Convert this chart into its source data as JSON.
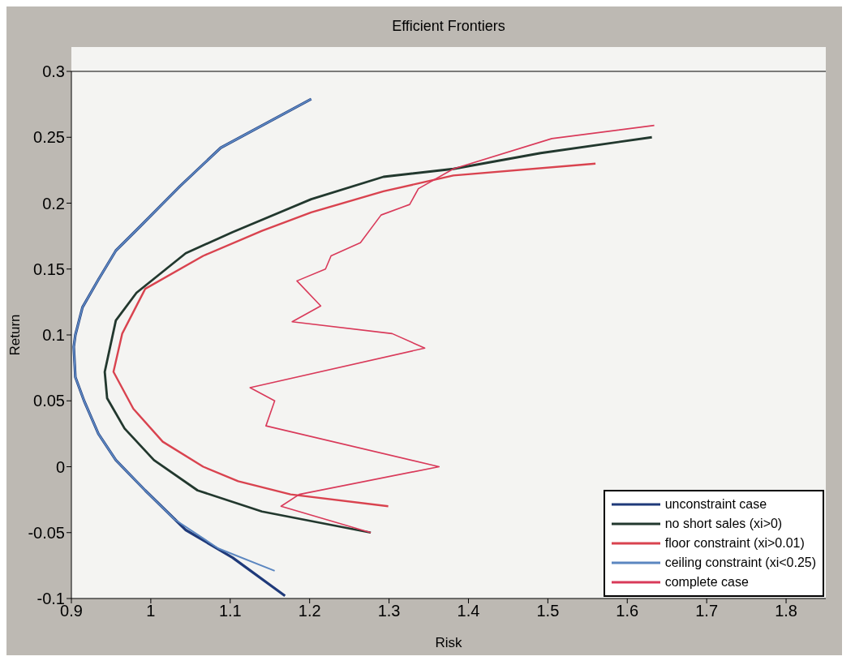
{
  "chart_data": {
    "type": "line",
    "title": "Efficient Frontiers",
    "xlabel": "Risk",
    "ylabel": "Return",
    "xlim": [
      0.9,
      1.85
    ],
    "xticks": [
      0.9,
      1,
      1.1,
      1.2,
      1.3,
      1.4,
      1.5,
      1.6,
      1.7,
      1.8
    ],
    "ylim": [
      -0.1,
      0.3
    ],
    "yticks": [
      -0.1,
      -0.05,
      0,
      0.05,
      0.1,
      0.15,
      0.2,
      0.25,
      0.3
    ],
    "grid": false,
    "legend": "bottom right",
    "marker": "none",
    "line_style": "solid",
    "series": [
      {
        "name": "unconstraint case",
        "color": "#1f3a7a",
        "x": [
          1.169,
          1.103,
          1.044,
          0.993,
          0.956,
          0.934,
          0.916,
          0.905,
          0.903,
          0.905,
          0.914,
          0.934,
          0.956,
          0.986,
          1.037,
          1.088,
          1.202
        ],
        "values": [
          -0.098,
          -0.069,
          -0.048,
          -0.018,
          0.005,
          0.025,
          0.05,
          0.068,
          0.091,
          0.1,
          0.121,
          0.142,
          0.164,
          0.182,
          0.213,
          0.242,
          0.279
        ]
      },
      {
        "name": "no short sales (xi>0)",
        "color": "#22382e",
        "x": [
          1.277,
          1.14,
          1.059,
          1.004,
          0.967,
          0.945,
          0.942,
          0.956,
          0.982,
          1.044,
          1.103,
          1.202,
          1.293,
          1.381,
          1.491,
          1.631
        ],
        "values": [
          -0.05,
          -0.034,
          -0.018,
          0.005,
          0.029,
          0.052,
          0.072,
          0.111,
          0.132,
          0.162,
          0.178,
          0.203,
          0.22,
          0.226,
          0.238,
          0.25
        ]
      },
      {
        "name": "floor constraint (xi>0.01)",
        "color": "#d9434f",
        "x": [
          1.299,
          1.176,
          1.11,
          1.066,
          1.015,
          0.978,
          0.953,
          0.964,
          0.993,
          1.066,
          1.14,
          1.202,
          1.293,
          1.337,
          1.381,
          1.56
        ],
        "values": [
          -0.03,
          -0.021,
          -0.011,
          0.0,
          0.019,
          0.044,
          0.072,
          0.101,
          0.135,
          0.16,
          0.179,
          0.193,
          0.209,
          0.215,
          0.221,
          0.23
        ]
      },
      {
        "name": "ceiling constraint (xi<0.25)",
        "color": "#5b86c0",
        "x": [
          1.156,
          1.085,
          1.03,
          0.993,
          0.956,
          0.934,
          0.916,
          0.905,
          0.903,
          0.905,
          0.914,
          0.934,
          0.956,
          0.986,
          1.037,
          1.088,
          1.202
        ],
        "values": [
          -0.079,
          -0.062,
          -0.04,
          -0.018,
          0.005,
          0.025,
          0.05,
          0.068,
          0.091,
          0.1,
          0.121,
          0.142,
          0.164,
          0.182,
          0.213,
          0.242,
          0.279
        ]
      },
      {
        "name": "complete case",
        "color": "#d93a5a",
        "x": [
          1.277,
          1.164,
          1.187,
          1.363,
          1.145,
          1.156,
          1.125,
          1.345,
          1.304,
          1.178,
          1.214,
          1.184,
          1.22,
          1.227,
          1.264,
          1.29,
          1.326,
          1.337,
          1.381,
          1.505,
          1.634
        ],
        "values": [
          -0.05,
          -0.03,
          -0.021,
          0.0,
          0.031,
          0.05,
          0.06,
          0.09,
          0.101,
          0.11,
          0.122,
          0.141,
          0.15,
          0.16,
          0.17,
          0.191,
          0.199,
          0.211,
          0.226,
          0.249,
          0.259
        ]
      }
    ]
  }
}
